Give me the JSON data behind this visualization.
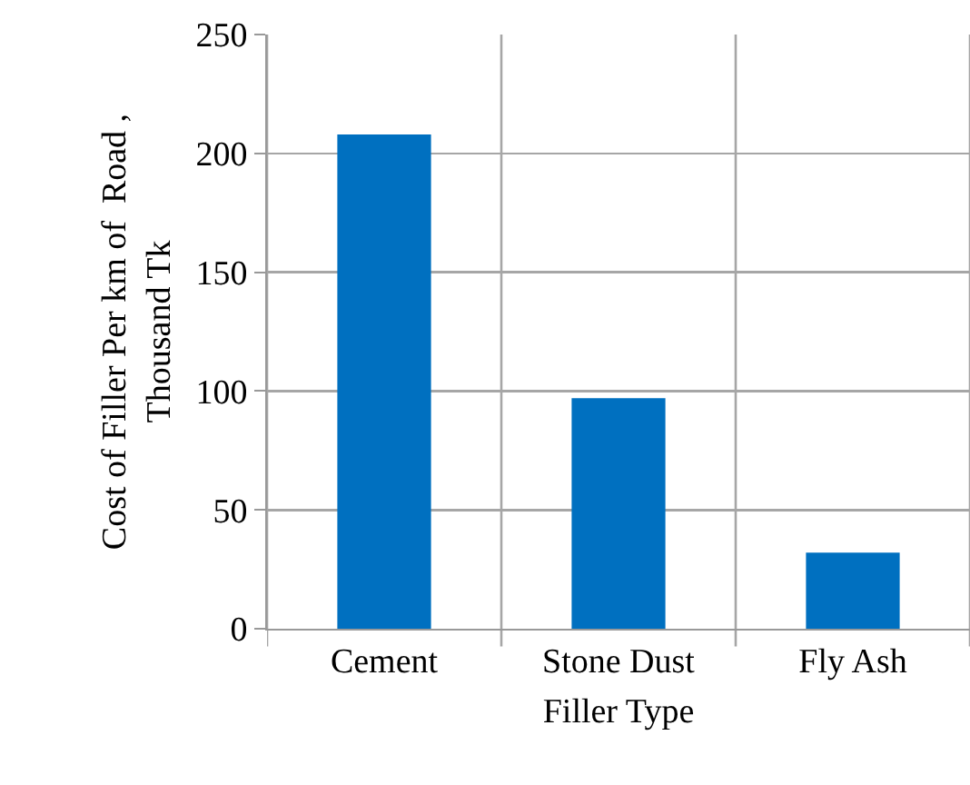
{
  "chart_data": {
    "type": "bar",
    "xlabel": "Filler Type",
    "ylabel": "Cost of Filler Per km of  Road ,\nThousand Tk",
    "categories": [
      "Cement",
      "Stone Dust",
      "Fly Ash"
    ],
    "values": [
      208,
      97,
      32
    ],
    "color": "#0070c0",
    "ylim": [
      0,
      250
    ],
    "yticks": [
      0,
      50,
      100,
      150,
      200,
      250
    ],
    "grid": true
  }
}
